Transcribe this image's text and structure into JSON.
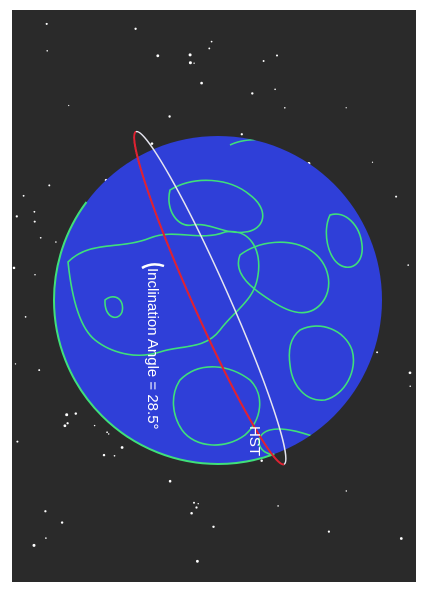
{
  "labels": {
    "inclination": "Inclination Angle = 28.5°",
    "satellite": "HST"
  }
}
